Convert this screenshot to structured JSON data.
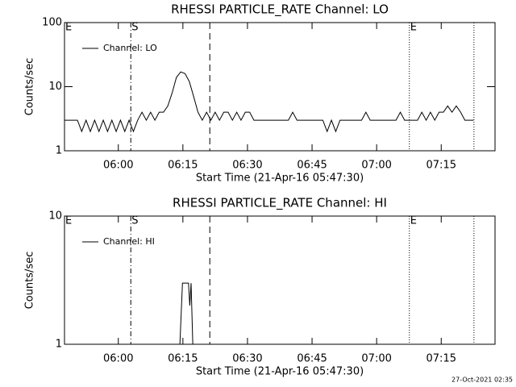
{
  "chart_data": [
    {
      "type": "line",
      "title": "RHESSI PARTICLE_RATE Channel: LO",
      "xlabel": "Start Time (21-Apr-16 05:47:30)",
      "ylabel": "Counts/sec",
      "xlim": [
        0,
        100
      ],
      "ylim": [
        1,
        100
      ],
      "ylog": true,
      "xticks": [
        {
          "value": 12.5,
          "label": "06:00"
        },
        {
          "value": 27.5,
          "label": "06:15"
        },
        {
          "value": 42.5,
          "label": "06:30"
        },
        {
          "value": 57.5,
          "label": "06:45"
        },
        {
          "value": 72.5,
          "label": "07:00"
        },
        {
          "value": 87.5,
          "label": "07:15"
        }
      ],
      "yticks": [
        1,
        10,
        100
      ],
      "legend": "upper left",
      "markers": [
        {
          "x": 0,
          "label": "E"
        },
        {
          "x": 15.4,
          "label": "S",
          "style": "dashdot"
        },
        {
          "x": 33.75,
          "style": "dashed"
        },
        {
          "x": 80.1,
          "label": "E",
          "style": "dotted"
        },
        {
          "x": 95.1,
          "style": "dotted"
        }
      ],
      "series": [
        {
          "name": "Channel: LO",
          "color": "#000000",
          "x": [
            0,
            1,
            2,
            3,
            4,
            5,
            6,
            7,
            8,
            9,
            10,
            11,
            12,
            13,
            14,
            15,
            16,
            17,
            18,
            19,
            20,
            21,
            22,
            23,
            24,
            25,
            26,
            27,
            28,
            29,
            30,
            31,
            32,
            33,
            34,
            35,
            36,
            37,
            38,
            39,
            40,
            41,
            42,
            43,
            44,
            45,
            46,
            47,
            48,
            49,
            50,
            51,
            52,
            53,
            54,
            55,
            56,
            57,
            58,
            59,
            60,
            61,
            62,
            63,
            64,
            65,
            66,
            67,
            68,
            69,
            70,
            71,
            72,
            73,
            74,
            75,
            76,
            77,
            78,
            79,
            80,
            81,
            82,
            83,
            84,
            85,
            86,
            87,
            88,
            89,
            90,
            91,
            92,
            93,
            94,
            95
          ],
          "values": [
            3,
            3,
            3,
            3,
            2,
            3,
            2,
            3,
            2,
            3,
            2,
            3,
            2,
            3,
            2,
            3,
            2,
            3,
            4,
            3,
            4,
            3,
            4,
            4,
            5,
            8,
            14,
            17,
            16,
            12,
            7,
            4,
            3,
            4,
            3,
            4,
            3,
            4,
            4,
            3,
            4,
            3,
            4,
            4,
            3,
            3,
            3,
            3,
            3,
            3,
            3,
            3,
            3,
            4,
            3,
            3,
            3,
            3,
            3,
            3,
            3,
            2,
            3,
            2,
            3,
            3,
            3,
            3,
            3,
            3,
            4,
            3,
            3,
            3,
            3,
            3,
            3,
            3,
            4,
            3,
            3,
            3,
            3,
            4,
            3,
            4,
            3,
            4,
            4,
            5,
            4,
            5,
            4,
            3,
            3,
            3
          ]
        }
      ]
    },
    {
      "type": "line",
      "title": "RHESSI PARTICLE_RATE Channel: HI",
      "xlabel": "Start Time (21-Apr-16 05:47:30)",
      "ylabel": "Counts/sec",
      "xlim": [
        0,
        100
      ],
      "ylim": [
        1,
        10
      ],
      "ylog": true,
      "xticks": [
        {
          "value": 12.5,
          "label": "06:00"
        },
        {
          "value": 27.5,
          "label": "06:15"
        },
        {
          "value": 42.5,
          "label": "06:30"
        },
        {
          "value": 57.5,
          "label": "06:45"
        },
        {
          "value": 72.5,
          "label": "07:00"
        },
        {
          "value": 87.5,
          "label": "07:15"
        }
      ],
      "yticks": [
        1,
        10
      ],
      "legend": "upper left",
      "markers": [
        {
          "x": 0,
          "label": "E"
        },
        {
          "x": 15.4,
          "label": "S",
          "style": "dashdot"
        },
        {
          "x": 33.75,
          "style": "dashed"
        },
        {
          "x": 80.1,
          "label": "E",
          "style": "dotted"
        },
        {
          "x": 95.1,
          "style": "dotted"
        }
      ],
      "series": [
        {
          "name": "Channel: HI",
          "color": "#000000",
          "x": [
            26.8,
            27.4,
            28.8,
            29.1,
            29.4,
            29.8
          ],
          "values": [
            1,
            3,
            3,
            2,
            3,
            1
          ]
        }
      ]
    }
  ],
  "footer": "27-Oct-2021 02:35"
}
